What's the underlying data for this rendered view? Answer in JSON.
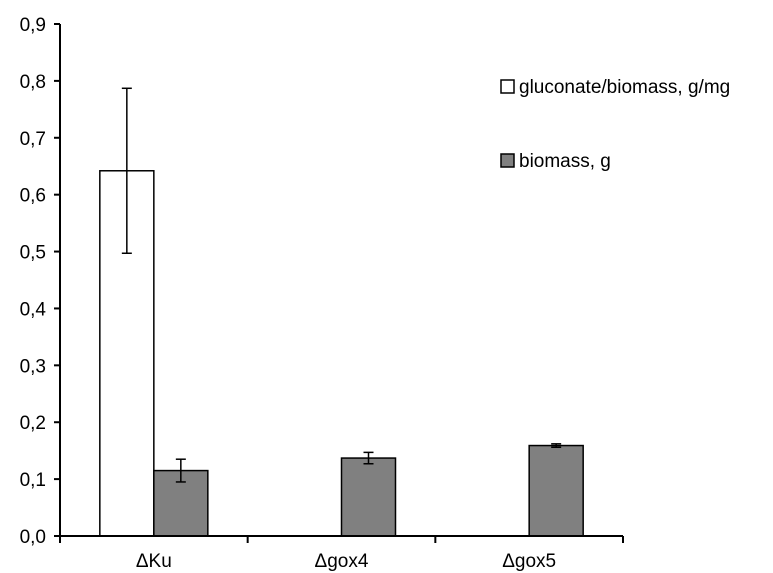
{
  "chart_data": {
    "type": "bar",
    "categories": [
      "ΔKu",
      "Δgox4",
      "Δgox5"
    ],
    "series": [
      {
        "name": "gluconate/biomass, g/mg",
        "color": "#ffffff",
        "values": [
          0.642,
          null,
          null
        ],
        "error": [
          0.145,
          null,
          null
        ]
      },
      {
        "name": "biomass, g",
        "color": "#808080",
        "values": [
          0.115,
          0.137,
          0.159
        ],
        "error": [
          0.02,
          0.01,
          0.003
        ]
      }
    ],
    "ylim": [
      0,
      0.9
    ],
    "yticks": [
      "0,0",
      "0,1",
      "0,2",
      "0,3",
      "0,4",
      "0,5",
      "0,6",
      "0,7",
      "0,8",
      "0,9"
    ],
    "title": "",
    "xlabel": "",
    "ylabel": "",
    "grid": false,
    "legend_position": "top-right"
  }
}
